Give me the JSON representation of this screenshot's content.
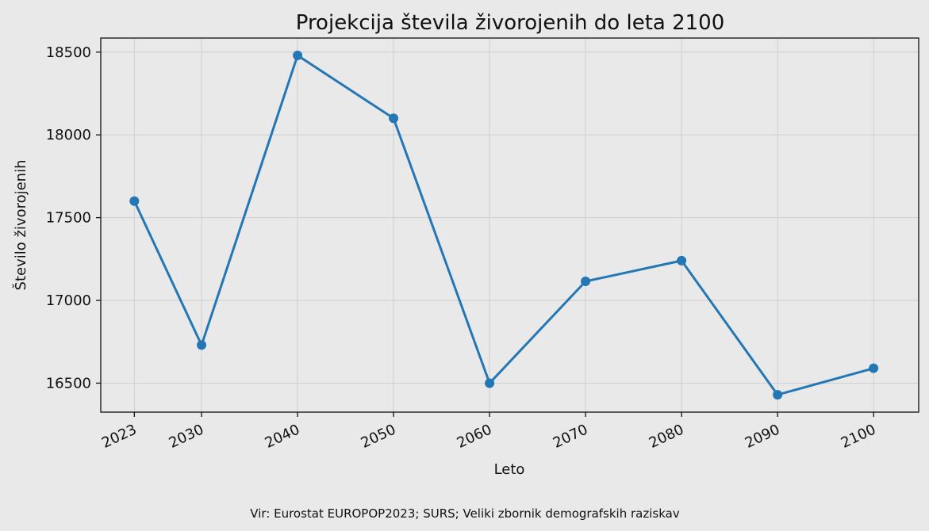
{
  "chart_data": {
    "type": "line",
    "title": "Projekcija števila živorojenih do leta 2100",
    "xlabel": "Leto",
    "ylabel": "Število živorojenih",
    "x": [
      2023,
      2030,
      2040,
      2050,
      2060,
      2070,
      2080,
      2090,
      2100
    ],
    "x_tick_labels": [
      "2023",
      "2030",
      "2040",
      "2050",
      "2060",
      "2070",
      "2080",
      "2090",
      "2100"
    ],
    "y": [
      17600,
      16730,
      18480,
      18100,
      16500,
      17115,
      17240,
      16430,
      16590
    ],
    "y_ticks": [
      16500,
      17000,
      17500,
      18000,
      18500
    ],
    "y_tick_labels": [
      "16500",
      "17000",
      "17500",
      "18000",
      "18500"
    ],
    "xlim": [
      2019.5,
      2104.7
    ],
    "ylim": [
      16325,
      18585
    ],
    "grid": true,
    "legend": false,
    "line_color": "#2377b4",
    "background_color": "#e9e9e9",
    "source": "Vir: Eurostat EUROPOP2023; SURS; Veliki zbornik demografskih raziskav"
  }
}
